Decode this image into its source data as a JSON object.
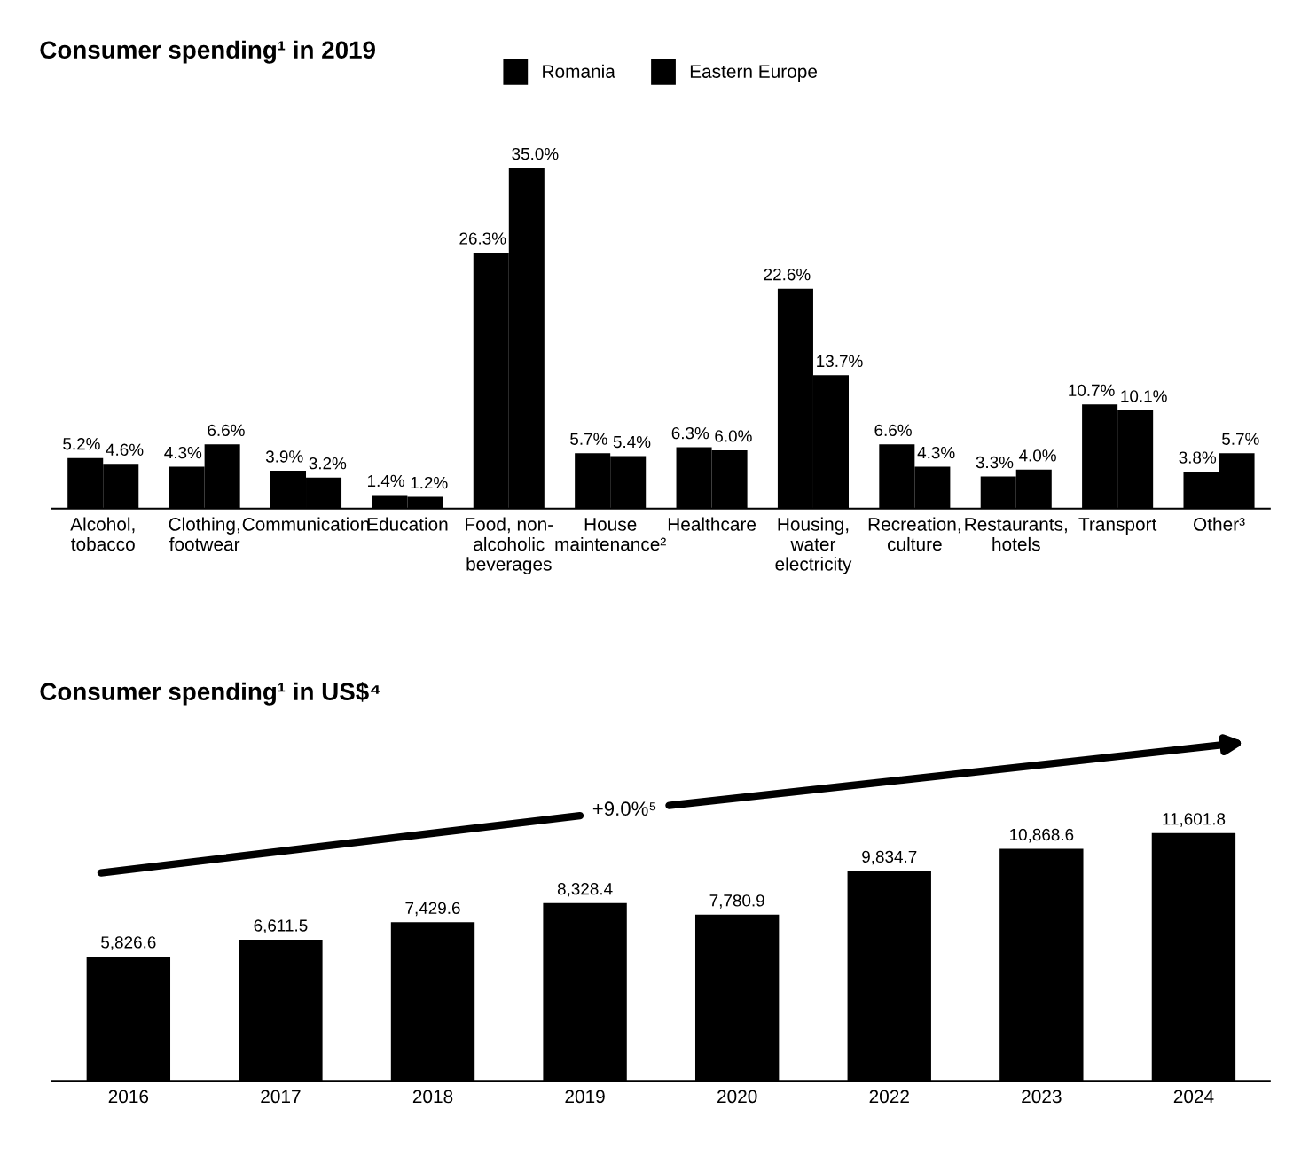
{
  "chart_data": [
    {
      "type": "bar",
      "title": "Consumer spending¹ in 2019",
      "categories": [
        "Alcohol,\ntobacco",
        "Clothing,\nfootwear",
        "Communication",
        "Education",
        "Food, non-\nalcoholic\nbeverages",
        "House\nmaintenance²",
        "Healthcare",
        "Housing,\nwater\nelectricity",
        "Recreation,\nculture",
        "Restaurants,\nhotels",
        "Transport",
        "Other³"
      ],
      "series": [
        {
          "name": "Romania",
          "color": "#000000",
          "values": [
            5.2,
            4.3,
            3.9,
            1.4,
            26.3,
            5.7,
            6.3,
            22.6,
            6.6,
            3.3,
            10.7,
            3.8
          ],
          "value_labels": [
            "5.2%",
            "4.3%",
            "3.9%",
            "1.4%",
            "26.3%",
            "5.7%",
            "6.3%",
            "22.6%",
            "6.6%",
            "3.3%",
            "10.7%",
            "3.8%"
          ]
        },
        {
          "name": "Eastern Europe",
          "color": "#000000",
          "values": [
            4.6,
            6.6,
            3.2,
            1.2,
            35.0,
            5.4,
            6.0,
            13.7,
            4.3,
            4.0,
            10.1,
            5.7
          ],
          "value_labels": [
            "4.6%",
            "6.6%",
            "3.2%",
            "1.2%",
            "35.0%",
            "5.4%",
            "6.0%",
            "13.7%",
            "4.3%",
            "4.0%",
            "10.1%",
            "5.7%"
          ]
        }
      ],
      "legend": "top",
      "tick_labels": "x",
      "grid": false
    },
    {
      "type": "bar",
      "title": "Consumer spending¹ in US$⁴",
      "categories": [
        "2016",
        "2017",
        "2018",
        "2019",
        "2020",
        "2022",
        "2023",
        "2024"
      ],
      "values": [
        5826.6,
        6611.5,
        7429.6,
        8328.4,
        7780.9,
        9834.7,
        10868.6,
        11601.8
      ],
      "value_labels": [
        "5,826.6",
        "6,611.5",
        "7,429.6",
        "8,328.4",
        "7,780.9",
        "9,834.7",
        "10,868.6",
        "11,601.8"
      ],
      "color": "#000000",
      "annotations": [
        "+9.0%⁵"
      ],
      "tick_labels": "x",
      "grid": false
    }
  ]
}
